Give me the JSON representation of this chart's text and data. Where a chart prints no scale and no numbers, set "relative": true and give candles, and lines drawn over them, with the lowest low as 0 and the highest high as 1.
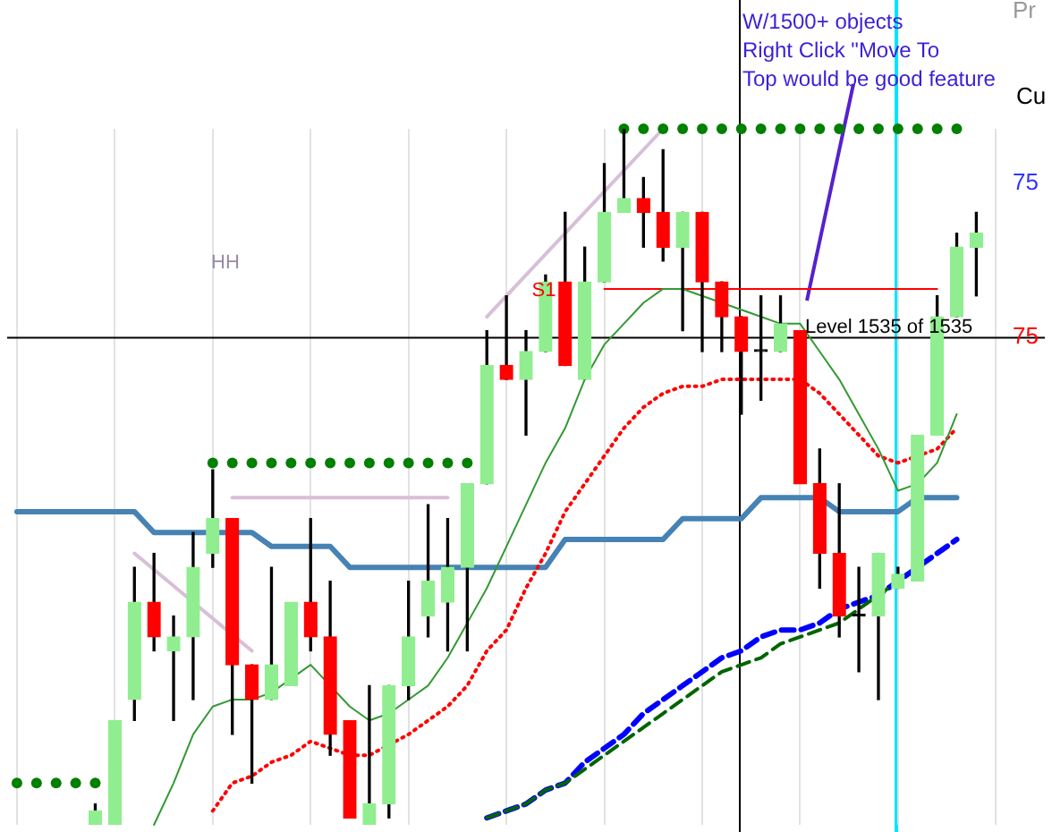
{
  "chart_data": {
    "type": "candlestick",
    "relative": true,
    "grid": "x",
    "tick_labels": false,
    "categories": [
      null,
      null,
      null,
      null,
      null,
      null,
      null,
      null,
      null,
      null,
      null,
      null,
      null,
      null,
      null,
      null,
      null,
      null,
      null,
      null,
      null,
      null,
      null,
      null,
      null,
      null,
      null,
      null,
      null,
      null,
      null,
      null,
      null,
      null,
      null,
      null,
      null,
      null,
      null,
      null,
      null,
      null,
      null,
      null,
      null,
      null,
      null,
      null,
      null,
      null,
      null,
      null,
      null
    ],
    "ohlc": [
      null,
      null,
      null,
      null,
      [
        0,
        0.03,
        0,
        0.02
      ],
      [
        0,
        0.15,
        0,
        0.15
      ],
      [
        0.18,
        0.37,
        0.15,
        0.32
      ],
      [
        0.32,
        0.39,
        0.25,
        0.27
      ],
      [
        0.25,
        0.3,
        0.15,
        0.27
      ],
      [
        0.27,
        0.42,
        0.18,
        0.37
      ],
      [
        0.39,
        0.51,
        0.37,
        0.44
      ],
      [
        0.44,
        0.44,
        0.13,
        0.23
      ],
      [
        0.23,
        0.23,
        0.06,
        0.18
      ],
      [
        0.18,
        0.37,
        0.18,
        0.23
      ],
      [
        0.2,
        0.32,
        0.2,
        0.32
      ],
      [
        0.32,
        0.44,
        0.25,
        0.27
      ],
      [
        0.27,
        0.35,
        0.1,
        0.13
      ],
      [
        0.15,
        0.15,
        0.01,
        0.01
      ],
      [
        0,
        0.2,
        0,
        0.03
      ],
      [
        0.03,
        0.2,
        0.01,
        0.2
      ],
      [
        0.2,
        0.35,
        0.18,
        0.27
      ],
      [
        0.3,
        0.46,
        0.27,
        0.35
      ],
      [
        0.32,
        0.44,
        0.25,
        0.37
      ],
      [
        0.37,
        0.49,
        0.25,
        0.49
      ],
      [
        0.49,
        0.71,
        0.49,
        0.66
      ],
      [
        0.66,
        0.76,
        0.64,
        0.64
      ],
      [
        0.64,
        0.71,
        0.56,
        0.68
      ],
      [
        0.68,
        0.79,
        0.68,
        0.78
      ],
      [
        0.78,
        0.88,
        0.66,
        0.66
      ],
      [
        0.64,
        0.83,
        0.64,
        0.78
      ],
      [
        0.78,
        0.95,
        0.78,
        0.88
      ],
      [
        0.88,
        1,
        0.88,
        0.9
      ],
      [
        0.9,
        0.93,
        0.83,
        0.88
      ],
      [
        0.88,
        0.97,
        0.81,
        0.83
      ],
      [
        0.83,
        0.88,
        0.71,
        0.88
      ],
      [
        0.88,
        0.88,
        0.68,
        0.78
      ],
      [
        0.78,
        0.78,
        0.68,
        0.73
      ],
      [
        0.73,
        0.73,
        0.59,
        0.68
      ],
      [
        0.68,
        0.76,
        0.61,
        0.68
      ],
      [
        0.68,
        0.76,
        0.68,
        0.72
      ],
      [
        0.71,
        0.71,
        0.49,
        0.49
      ],
      [
        0.49,
        0.54,
        0.34,
        0.39
      ],
      [
        0.39,
        0.49,
        0.27,
        0.3
      ],
      [
        0.3,
        0.37,
        0.22,
        0.3
      ],
      [
        0.3,
        0.39,
        0.18,
        0.39
      ],
      [
        0.34,
        0.37,
        0.34,
        0.36
      ],
      [
        0.35,
        0.56,
        0.35,
        0.56
      ],
      [
        0.56,
        0.76,
        0.56,
        0.73
      ],
      [
        0.73,
        0.85,
        0.73,
        0.83
      ],
      [
        0.83,
        0.88,
        0.76,
        0.85
      ],
      null,
      null,
      null
    ],
    "colors": [
      null,
      null,
      null,
      null,
      "#90ee90",
      "#90ee90",
      "#90ee90",
      "#ff0000",
      "#90ee90",
      "#90ee90",
      "#90ee90",
      "#ff0000",
      "#ff0000",
      "#90ee90",
      "#90ee90",
      "#ff0000",
      "#ff0000",
      "#ff0000",
      "#90ee90",
      "#90ee90",
      "#90ee90",
      "#90ee90",
      "#90ee90",
      "#90ee90",
      "#90ee90",
      "#ff0000",
      "#90ee90",
      "#90ee90",
      "#ff0000",
      "#90ee90",
      "#90ee90",
      "#90ee90",
      "#ff0000",
      "#ff0000",
      "#90ee90",
      "#ff0000",
      "#ff0000",
      "#ff0000",
      "#000000",
      "#90ee90",
      "#ff0000",
      "#ff0000",
      "#ff0000",
      "#000000",
      "#90ee90",
      "#90ee90",
      "#90ee90",
      "#90ee90",
      "#90ee90",
      "#90ee90",
      null,
      null,
      null
    ],
    "series": [
      {
        "type": "line",
        "color": "#4682b4",
        "line_style": "solid",
        "values": [
          0.45,
          0.45,
          0.45,
          0.45,
          0.45,
          0.45,
          0.45,
          0.42,
          0.42,
          0.42,
          0.42,
          0.42,
          0.42,
          0.4,
          0.4,
          0.4,
          0.4,
          0.37,
          0.37,
          0.37,
          0.37,
          0.37,
          0.37,
          0.37,
          0.37,
          0.37,
          0.37,
          0.37,
          0.41,
          0.41,
          0.41,
          0.41,
          0.41,
          0.41,
          0.44,
          0.44,
          0.44,
          0.44,
          0.47,
          0.47,
          0.47,
          0.47,
          0.45,
          0.45,
          0.45,
          0.45,
          0.47,
          0.47,
          0.47,
          null,
          null,
          null,
          null
        ]
      },
      {
        "type": "line",
        "color": "#339933",
        "line_style": "solid",
        "values": [
          null,
          null,
          null,
          null,
          null,
          null,
          null,
          0,
          0.06,
          0.13,
          0.17,
          0.18,
          0.18,
          0.19,
          0.21,
          0.23,
          null,
          0.17,
          0.15,
          0.16,
          0.18,
          0.2,
          0.24,
          0.29,
          0.34,
          0.4,
          0.46,
          0.52,
          0.57,
          0.64,
          0.69,
          0.72,
          0.75,
          0.77,
          0.77,
          0.76,
          null,
          0.74,
          0.73,
          0.72,
          0.72,
          0.68,
          0.64,
          0.59,
          0.54,
          0.48,
          0.49,
          0.52,
          0.59,
          null,
          null,
          null,
          null
        ]
      },
      {
        "type": "line",
        "color": "#ff0000",
        "line_style": "dotted",
        "values": [
          null,
          null,
          null,
          null,
          null,
          null,
          null,
          null,
          null,
          null,
          0.02,
          0.06,
          0.07,
          0.09,
          0.1,
          0.12,
          0.11,
          0.1,
          0.1,
          null,
          0.13,
          0.15,
          0.17,
          0.2,
          0.25,
          0.28,
          0.34,
          0.39,
          0.45,
          0.49,
          0.53,
          0.57,
          0.6,
          0.62,
          0.63,
          0.63,
          0.64,
          0.64,
          0.64,
          0.64,
          0.64,
          0.62,
          0.59,
          0.56,
          0.53,
          0.52,
          0.53,
          0.54,
          0.57,
          null,
          null,
          null,
          null
        ]
      },
      {
        "type": "line",
        "color": "#0000ff",
        "line_style": "dashed",
        "values": [
          null,
          null,
          null,
          null,
          null,
          null,
          null,
          null,
          null,
          null,
          null,
          null,
          null,
          null,
          null,
          null,
          null,
          null,
          null,
          null,
          null,
          null,
          null,
          null,
          0.01,
          0.02,
          0.03,
          0.05,
          0.06,
          0.09,
          0.11,
          0.13,
          0.16,
          0.18,
          0.2,
          0.22,
          0.24,
          0.25,
          0.27,
          0.28,
          0.28,
          0.29,
          0.31,
          0.32,
          0.33,
          0.35,
          0.37,
          0.39,
          0.41,
          null,
          null,
          null,
          null
        ]
      },
      {
        "type": "line",
        "color": "#006400",
        "line_style": "dashed",
        "values": [
          null,
          null,
          null,
          null,
          null,
          null,
          null,
          null,
          null,
          null,
          null,
          null,
          null,
          null,
          null,
          null,
          null,
          null,
          null,
          null,
          null,
          null,
          null,
          null,
          0.01,
          0.02,
          0.03,
          0.05,
          0.06,
          0.08,
          0.1,
          0.12,
          0.14,
          0.16,
          0.18,
          0.2,
          0.22,
          0.23,
          0.24,
          0.26,
          0.27,
          0.28,
          0.29,
          0.31,
          0.33,
          0.35,
          null,
          null,
          null,
          null,
          null,
          null,
          null
        ]
      },
      {
        "type": "scatter",
        "color": "#008000",
        "marker": "circle",
        "values": [
          0.06,
          0.06,
          0.06,
          0.06,
          0.06,
          null,
          null,
          null,
          null,
          null,
          0.52,
          0.52,
          0.52,
          0.52,
          0.52,
          0.52,
          0.52,
          0.52,
          0.52,
          0.52,
          0.52,
          0.52,
          0.52,
          0.52,
          null,
          null,
          null,
          null,
          null,
          null,
          null,
          1,
          1,
          1,
          1,
          1,
          1,
          1,
          1,
          1,
          1,
          1,
          1,
          1,
          1,
          1,
          1,
          1,
          1,
          null,
          null,
          null,
          null
        ]
      },
      {
        "type": "line",
        "color": "#d8bfd8",
        "line_style": "solid",
        "values": [
          null,
          null,
          null,
          null,
          null,
          null,
          0.39,
          null,
          null,
          null,
          null,
          null,
          0.25,
          null,
          null,
          null,
          null,
          null,
          null,
          null,
          null,
          null,
          null,
          null,
          null,
          null,
          null,
          null,
          null,
          null,
          null,
          null,
          null,
          null,
          null,
          null,
          null,
          null,
          null,
          null,
          null,
          null,
          null,
          null,
          null,
          null,
          null,
          null,
          null,
          null,
          null,
          null,
          null
        ]
      },
      {
        "type": "line",
        "color": "#d8bfd8",
        "line_style": "solid",
        "values": [
          null,
          null,
          null,
          null,
          null,
          null,
          null,
          null,
          null,
          null,
          null,
          0.47,
          null,
          null,
          null,
          null,
          null,
          null,
          null,
          null,
          null,
          null,
          0.47,
          null,
          null,
          null,
          null,
          null,
          null,
          null,
          null,
          null,
          null,
          null,
          null,
          null,
          null,
          null,
          null,
          null,
          null,
          null,
          null,
          null,
          null,
          null,
          null,
          null,
          null,
          null,
          null,
          null,
          null
        ]
      },
      {
        "type": "line",
        "color": "#d8bfd8",
        "line_style": "solid",
        "values": [
          null,
          null,
          null,
          null,
          null,
          null,
          null,
          null,
          null,
          null,
          null,
          null,
          null,
          null,
          null,
          null,
          null,
          null,
          null,
          null,
          null,
          null,
          null,
          null,
          0.73,
          null,
          null,
          null,
          null,
          null,
          null,
          null,
          null,
          1,
          null,
          null,
          null,
          null,
          null,
          null,
          null,
          null,
          null,
          null,
          null,
          null,
          null,
          null,
          null,
          null,
          null,
          null,
          null
        ]
      },
      {
        "type": "line",
        "name": "S1",
        "color": "#ff0000",
        "line_style": "solid",
        "values": [
          null,
          null,
          null,
          null,
          null,
          null,
          null,
          null,
          null,
          null,
          null,
          null,
          null,
          null,
          null,
          null,
          null,
          null,
          null,
          null,
          null,
          null,
          null,
          null,
          null,
          null,
          null,
          null,
          null,
          null,
          0.77,
          null,
          null,
          null,
          null,
          null,
          null,
          null,
          null,
          null,
          null,
          null,
          null,
          null,
          null,
          null,
          null,
          0.77,
          null,
          null,
          null,
          null,
          null
        ]
      }
    ],
    "ref_lines": [
      {
        "axis": "y",
        "value": 0.7,
        "color": "#000000"
      }
    ],
    "annotations": [
      "HH",
      "W/1500+ objects\nRight Click \"Move To\nTop would be good feature",
      "Level 1535 of 1535",
      "Pr",
      "Cu",
      "75",
      "75"
    ]
  }
}
